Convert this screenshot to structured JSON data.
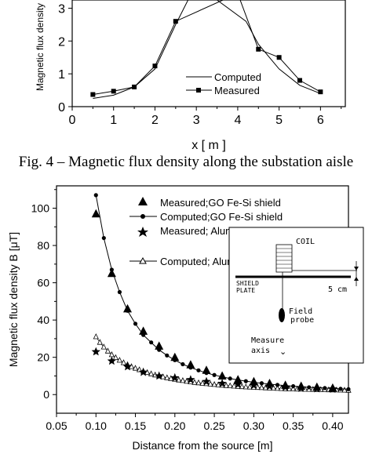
{
  "caption": "Fig. 4 – Magnetic flux density along the substation aisle",
  "chart_data": [
    {
      "type": "line",
      "title": "",
      "xlabel": "x [ m ]",
      "ylabel": "Magnetic flux density",
      "xlim": [
        0,
        6.6
      ],
      "ylim": [
        0,
        3.25
      ],
      "x_ticks": [
        "0",
        "1",
        "2",
        "3",
        "4",
        "5",
        "6"
      ],
      "y_ticks": [
        "0",
        "1",
        "2",
        "3"
      ],
      "legend_position": "bottom-right",
      "grid": false,
      "series": [
        {
          "name": "Computed",
          "style": "line",
          "x": [
            0.5,
            1.0,
            1.5,
            2.0,
            2.5,
            2.8,
            3.5,
            4.2,
            4.5,
            5.0,
            5.5,
            6.0
          ],
          "y": [
            0.25,
            0.35,
            0.6,
            1.15,
            2.5,
            3.25,
            3.25,
            2.6,
            1.9,
            1.15,
            0.65,
            0.4
          ]
        },
        {
          "name": "Measured",
          "style": "line+square",
          "x": [
            0.5,
            1.0,
            1.5,
            2.0,
            2.5,
            4.0,
            4.5,
            5.0,
            5.5,
            6.0
          ],
          "y": [
            0.37,
            0.47,
            0.6,
            1.24,
            2.6,
            3.45,
            1.75,
            1.5,
            0.8,
            0.45
          ]
        }
      ]
    },
    {
      "type": "scatter",
      "title": "",
      "xlabel": "Distance from the source  [m]",
      "ylabel": "Magnetic flux density B [μT]",
      "xlim": [
        0.05,
        0.42
      ],
      "ylim": [
        -10,
        112
      ],
      "x_ticks": [
        "0.05",
        "0.10",
        "0.15",
        "0.20",
        "0.25",
        "0.30",
        "0.35",
        "0.40"
      ],
      "y_ticks": [
        "0",
        "20",
        "40",
        "60",
        "80",
        "100"
      ],
      "legend_position": "top-right",
      "grid": false,
      "series": [
        {
          "name": "Measured;GO Fe-Si shield",
          "marker": "filled-triangle",
          "x": [
            0.1,
            0.12,
            0.14,
            0.16,
            0.18,
            0.2,
            0.22,
            0.24,
            0.26,
            0.28,
            0.3,
            0.32,
            0.34,
            0.36,
            0.38,
            0.4
          ],
          "y": [
            97,
            65,
            46,
            34,
            26,
            20,
            16,
            13,
            10,
            8,
            7,
            6,
            5,
            4.5,
            4,
            3.5
          ]
        },
        {
          "name": "Computed;GO Fe-Si shield",
          "marker": "filled-dot",
          "x": [
            0.1,
            0.11,
            0.12,
            0.13,
            0.14,
            0.15,
            0.16,
            0.17,
            0.18,
            0.19,
            0.2,
            0.21,
            0.22,
            0.23,
            0.24,
            0.25,
            0.26,
            0.27,
            0.28,
            0.29,
            0.3,
            0.31,
            0.32,
            0.33,
            0.34,
            0.35,
            0.36,
            0.37,
            0.38,
            0.39,
            0.4,
            0.41,
            0.42
          ],
          "y": [
            107,
            84,
            67,
            55,
            45,
            38,
            32,
            28,
            24,
            21,
            18.5,
            16.3,
            14.5,
            13,
            11.6,
            10.5,
            9.5,
            8.6,
            7.9,
            7.2,
            6.6,
            6.1,
            5.6,
            5.2,
            4.8,
            4.5,
            4.2,
            3.9,
            3.7,
            3.5,
            3.3,
            3.1,
            2.9
          ]
        },
        {
          "name": "Measured; Aluminum shield",
          "marker": "filled-star",
          "x": [
            0.1,
            0.12,
            0.14,
            0.16,
            0.18,
            0.2,
            0.22,
            0.24,
            0.26,
            0.28,
            0.3,
            0.32,
            0.34,
            0.36,
            0.38,
            0.4
          ],
          "y": [
            23,
            18,
            15,
            12,
            10,
            9,
            8,
            7,
            6,
            5.5,
            5,
            4.5,
            4,
            3.5,
            3.2,
            3
          ]
        },
        {
          "name": "Computed; Aluminum shield",
          "marker": "open-triangle",
          "x": [
            0.1,
            0.105,
            0.11,
            0.115,
            0.12,
            0.125,
            0.13,
            0.135,
            0.14,
            0.145,
            0.15,
            0.155,
            0.16,
            0.165,
            0.17,
            0.175,
            0.18,
            0.185,
            0.19,
            0.195,
            0.2,
            0.205,
            0.21,
            0.215,
            0.22,
            0.225,
            0.23,
            0.235,
            0.24,
            0.245,
            0.25,
            0.255,
            0.26,
            0.265,
            0.27,
            0.275,
            0.28,
            0.285,
            0.29,
            0.295,
            0.3,
            0.305,
            0.31,
            0.315,
            0.32,
            0.325,
            0.33,
            0.335,
            0.34,
            0.345,
            0.35,
            0.355,
            0.36,
            0.365,
            0.37,
            0.375,
            0.38,
            0.385,
            0.39,
            0.395,
            0.4,
            0.405,
            0.41,
            0.415,
            0.42
          ],
          "y": [
            31,
            28,
            25.5,
            23.3,
            21.4,
            19.8,
            18.4,
            17.1,
            16,
            15,
            14.1,
            13.3,
            12.5,
            11.8,
            11.1,
            10.5,
            10,
            9.5,
            9,
            8.6,
            8.2,
            7.8,
            7.5,
            7.1,
            6.8,
            6.5,
            6.3,
            6,
            5.8,
            5.6,
            5.4,
            5.2,
            5,
            4.8,
            4.7,
            4.5,
            4.4,
            4.2,
            4.1,
            4,
            3.9,
            3.8,
            3.7,
            3.6,
            3.5,
            3.4,
            3.3,
            3.2,
            3.1,
            3.05,
            3,
            2.95,
            2.9,
            2.85,
            2.8,
            2.75,
            2.7,
            2.65,
            2.6,
            2.55,
            2.5,
            2.45,
            2.4,
            2.35,
            2.3
          ]
        }
      ],
      "inset": {
        "labels": {
          "coil": "COIL",
          "shield": "SHIELD",
          "plate": "PLATE",
          "distance": "5 cm",
          "field": "Field",
          "probe": "probe",
          "measure": "Measure",
          "axis": "axis"
        }
      }
    }
  ]
}
